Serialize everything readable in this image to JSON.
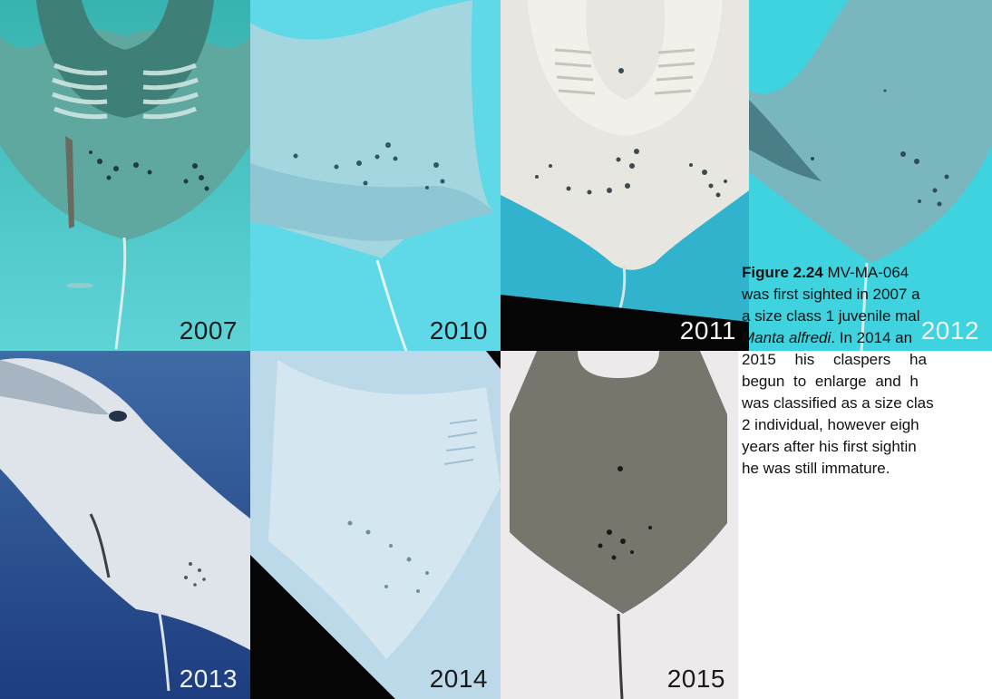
{
  "panels": [
    {
      "year": "2007"
    },
    {
      "year": "2010"
    },
    {
      "year": "2011"
    },
    {
      "year": "2012"
    },
    {
      "year": "2013"
    },
    {
      "year": "2014"
    },
    {
      "year": "2015"
    }
  ],
  "caption": {
    "figure_label": "Figure 2.24",
    "line1_rest": " MV-MA-064",
    "line2": "was first sighted in 2007 a",
    "line3": "a size class 1 juvenile mal",
    "line4_species": "Manta alfredi",
    "line4_rest": ". In 2014 an",
    "line5": "2015 his claspers ha",
    "line6": "begun to enlarge and h",
    "line7": "was classified as a size clas",
    "line8": "2 individual, however eigh",
    "line9": "years after his first sightin",
    "line10": "he was still immature."
  }
}
